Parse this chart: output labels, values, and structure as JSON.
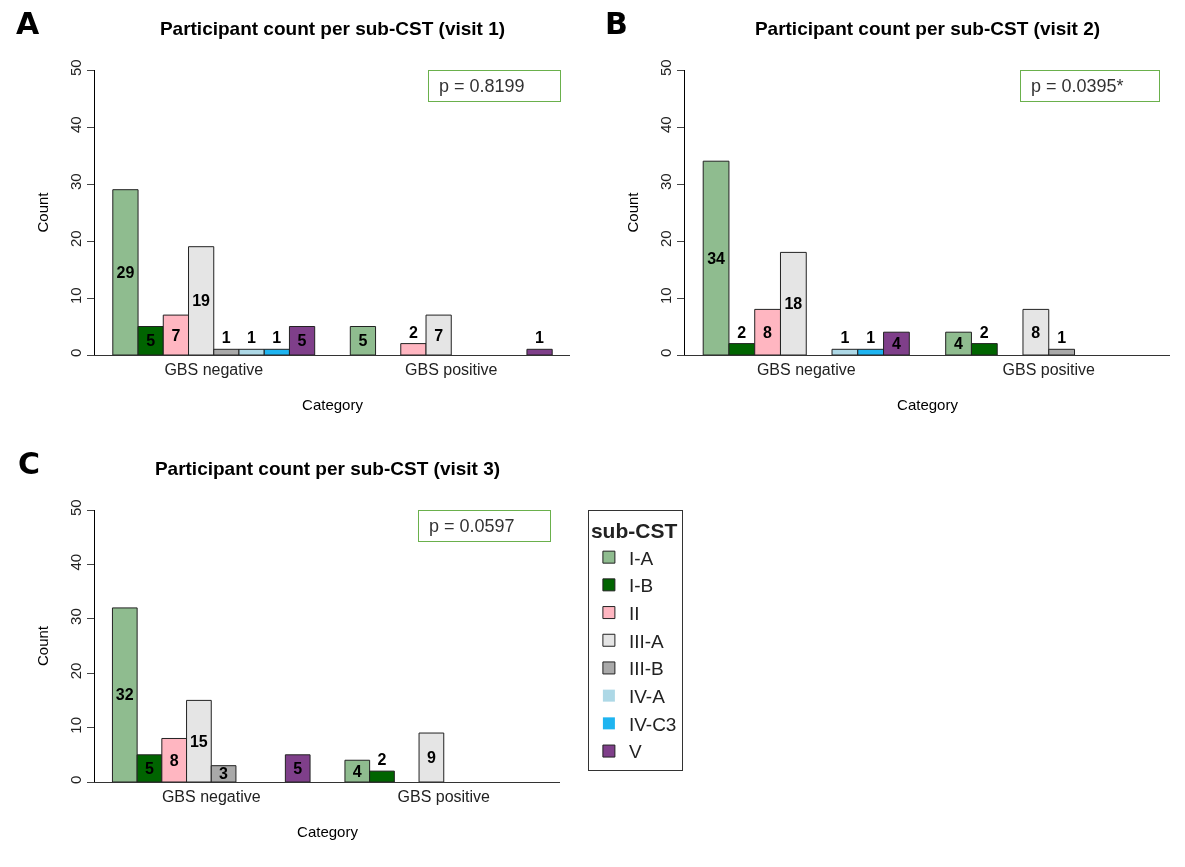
{
  "chart_data": [
    {
      "type": "bar",
      "title": "Participant count per sub-CST (visit 1)",
      "xlabel": "Category",
      "ylabel": "Count",
      "annotations": [
        "A",
        "p = 0.8199"
      ],
      "categories": [
        "GBS negative",
        "GBS positive"
      ],
      "ylim": [
        0,
        50
      ],
      "yticks": [
        0,
        10,
        20,
        30,
        40,
        50
      ],
      "grid": false,
      "series": [
        {
          "color": "#8fbc8f",
          "values": [
            29,
            5
          ],
          "value_labels": [
            "29",
            "5"
          ]
        },
        {
          "color": "#006400",
          "values": [
            5,
            0
          ],
          "value_labels": [
            "5",
            null
          ]
        },
        {
          "color": "#ffb6c1",
          "values": [
            7,
            2
          ],
          "value_labels": [
            "7",
            "2"
          ]
        },
        {
          "color": "#e5e5e5",
          "values": [
            19,
            7
          ],
          "value_labels": [
            "19",
            "7"
          ]
        },
        {
          "color": "#a9a9a9",
          "values": [
            1,
            0
          ],
          "value_labels": [
            "1",
            null
          ]
        },
        {
          "color": "#add8e6",
          "values": [
            1,
            0
          ],
          "value_labels": [
            "1",
            null
          ]
        },
        {
          "color": "#1eb4f0",
          "values": [
            1,
            0
          ],
          "value_labels": [
            "1",
            null
          ]
        },
        {
          "color": "#7f3f8a",
          "values": [
            5,
            1
          ],
          "value_labels": [
            "5",
            "1"
          ]
        }
      ]
    },
    {
      "type": "bar",
      "title": "Participant count per sub-CST (visit 2)",
      "xlabel": "Category",
      "ylabel": "Count",
      "annotations": [
        "B",
        "p = 0.0395*"
      ],
      "categories": [
        "GBS negative",
        "GBS positive"
      ],
      "ylim": [
        0,
        50
      ],
      "yticks": [
        0,
        10,
        20,
        30,
        40,
        50
      ],
      "grid": false,
      "series": [
        {
          "color": "#8fbc8f",
          "values": [
            34,
            4
          ],
          "value_labels": [
            "34",
            "4"
          ]
        },
        {
          "color": "#006400",
          "values": [
            2,
            2
          ],
          "value_labels": [
            "2",
            "2"
          ]
        },
        {
          "color": "#ffb6c1",
          "values": [
            8,
            0
          ],
          "value_labels": [
            "8",
            null
          ]
        },
        {
          "color": "#e5e5e5",
          "values": [
            18,
            8
          ],
          "value_labels": [
            "18",
            "8"
          ]
        },
        {
          "color": "#a9a9a9",
          "values": [
            0,
            1
          ],
          "value_labels": [
            null,
            "1"
          ]
        },
        {
          "color": "#add8e6",
          "values": [
            1,
            0
          ],
          "value_labels": [
            "1",
            null
          ]
        },
        {
          "color": "#1eb4f0",
          "values": [
            1,
            0
          ],
          "value_labels": [
            "1",
            null
          ]
        },
        {
          "color": "#7f3f8a",
          "values": [
            4,
            0
          ],
          "value_labels": [
            "4",
            null
          ]
        }
      ]
    },
    {
      "type": "bar",
      "title": "Participant count per sub-CST (visit 3)",
      "xlabel": "Category",
      "ylabel": "Count",
      "annotations": [
        "C",
        "p = 0.0597"
      ],
      "categories": [
        "GBS negative",
        "GBS positive"
      ],
      "ylim": [
        0,
        50
      ],
      "yticks": [
        0,
        10,
        20,
        30,
        40,
        50
      ],
      "grid": false,
      "legend": "right",
      "legend_title": "sub-CST",
      "series": [
        {
          "name": "I-A",
          "color": "#8fbc8f",
          "values": [
            32,
            4
          ],
          "value_labels": [
            "32",
            "4"
          ]
        },
        {
          "name": "I-B",
          "color": "#006400",
          "values": [
            5,
            2
          ],
          "value_labels": [
            "5",
            "2"
          ]
        },
        {
          "name": "II",
          "color": "#ffb6c1",
          "values": [
            8,
            0
          ],
          "value_labels": [
            "8",
            null
          ]
        },
        {
          "name": "III-A",
          "color": "#e5e5e5",
          "values": [
            15,
            9
          ],
          "value_labels": [
            "15",
            "9"
          ]
        },
        {
          "name": "III-B",
          "color": "#a9a9a9",
          "values": [
            3,
            0
          ],
          "value_labels": [
            "3",
            null
          ]
        },
        {
          "name": "IV-A",
          "color": "#add8e6",
          "values": [
            0,
            0
          ],
          "value_labels": [
            null,
            null
          ]
        },
        {
          "name": "IV-C3",
          "color": "#1eb4f0",
          "values": [
            0,
            0
          ],
          "value_labels": [
            null,
            null
          ]
        },
        {
          "name": "V",
          "color": "#7f3f8a",
          "values": [
            5,
            0
          ],
          "value_labels": [
            "5",
            null
          ]
        }
      ]
    }
  ]
}
